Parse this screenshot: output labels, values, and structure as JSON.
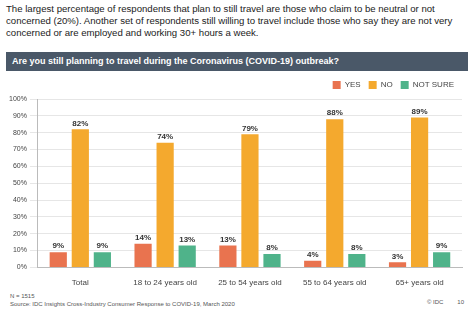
{
  "chart_data": {
    "type": "bar",
    "title": "Are you still planning to travel during the Coronavirus (COVID-19) outbreak?",
    "subtitle": "The largest percentage of respondents that plan to still travel are those who claim to be neutral or not concerned (20%). Another set of respondents still willing to travel include those who say they are not very concerned or are employed and working 30+ hours a week.",
    "annotations": [
      "N = 1515",
      "Source: IDC Insights Cross-Industry Consumer Response to COVID-19, March 2020",
      "© IDC",
      "10"
    ],
    "categories": [
      "Total",
      "18 to 24 years old",
      "25 to 54 years old",
      "55 to 64 years old",
      "65+ years old"
    ],
    "series": [
      {
        "name": "YES",
        "color": "#e9734f",
        "values": [
          9,
          14,
          13,
          4,
          3
        ],
        "value_labels": [
          "9%",
          "14%",
          "13%",
          "4%",
          "3%"
        ]
      },
      {
        "name": "NO",
        "color": "#f4a92e",
        "values": [
          82,
          74,
          79,
          88,
          89
        ],
        "value_labels": [
          "82%",
          "74%",
          "79%",
          "88%",
          "89%"
        ]
      },
      {
        "name": "NOT SURE",
        "color": "#4fb38a",
        "values": [
          9,
          13,
          8,
          8,
          9
        ],
        "value_labels": [
          "9%",
          "13%",
          "8%",
          "8%",
          "9%"
        ]
      }
    ],
    "ylim": [
      0,
      100
    ],
    "yticks": [
      {
        "value": 0,
        "label": "0%"
      },
      {
        "value": 10,
        "label": "10%"
      },
      {
        "value": 20,
        "label": "20%"
      },
      {
        "value": 30,
        "label": "30%"
      },
      {
        "value": 40,
        "label": "40%"
      },
      {
        "value": 50,
        "label": "50%"
      },
      {
        "value": 60,
        "label": "60%"
      },
      {
        "value": 70,
        "label": "70%"
      },
      {
        "value": 80,
        "label": "80%"
      },
      {
        "value": 90,
        "label": "90%"
      },
      {
        "value": 100,
        "label": "100%"
      }
    ],
    "grid": true,
    "legend": "top",
    "data_labels": true
  }
}
